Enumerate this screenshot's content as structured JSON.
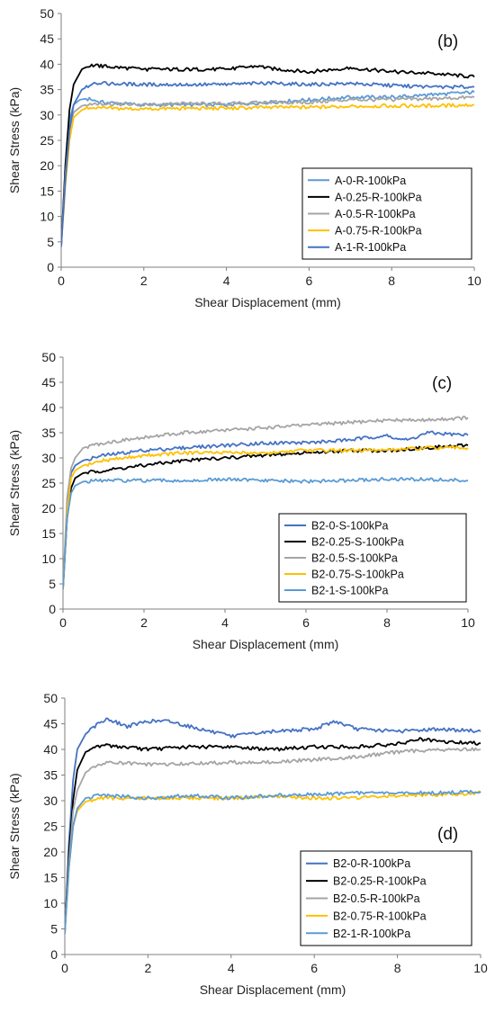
{
  "chart_data": [
    {
      "type": "line",
      "panel_label": "(b)",
      "xlabel": "Shear Displacement (mm)",
      "ylabel": "Shear Stress (kPa)",
      "xlim": [
        0,
        10
      ],
      "ylim": [
        0,
        50
      ],
      "xticks": [
        0,
        2,
        4,
        6,
        8,
        10
      ],
      "yticks": [
        0,
        5,
        10,
        15,
        20,
        25,
        30,
        35,
        40,
        45,
        50
      ],
      "grid": false,
      "legend_position": "lower-right",
      "series": [
        {
          "name": "A-0-R-100kPa",
          "color": "#5b9bd5",
          "x": [
            0,
            0.1,
            0.2,
            0.3,
            0.45,
            0.6,
            1,
            2,
            3,
            4,
            5,
            6,
            7,
            8,
            9,
            10
          ],
          "y": [
            4,
            20,
            29,
            32,
            33,
            33.2,
            32.5,
            32,
            32,
            32,
            32.5,
            33,
            33.5,
            33.5,
            34,
            34.5
          ]
        },
        {
          "name": "A-0.25-R-100kPa",
          "color": "#000000",
          "x": [
            0,
            0.1,
            0.2,
            0.3,
            0.5,
            0.7,
            1,
            2,
            3,
            4,
            4.8,
            5,
            6,
            7,
            8,
            9,
            10
          ],
          "y": [
            4,
            20,
            31,
            36,
            39,
            39.8,
            39.6,
            39,
            39,
            39,
            39.7,
            39.2,
            38.5,
            39.3,
            38.5,
            38.2,
            37.5
          ]
        },
        {
          "name": "A-0.5-R-100kPa",
          "color": "#a5a5a5",
          "x": [
            0,
            0.1,
            0.2,
            0.3,
            0.5,
            0.7,
            1,
            2,
            3,
            4,
            5,
            6,
            7,
            8,
            9,
            10
          ],
          "y": [
            4,
            18,
            27,
            30.5,
            31.8,
            32.2,
            32.2,
            32,
            32.2,
            32.2,
            32.5,
            32.5,
            33,
            33,
            33.2,
            33.5
          ]
        },
        {
          "name": "A-0.75-R-100kPa",
          "color": "#ffc000",
          "x": [
            0,
            0.1,
            0.2,
            0.3,
            0.5,
            0.7,
            1,
            2,
            3,
            4,
            5,
            6,
            7,
            8,
            9,
            10
          ],
          "y": [
            4,
            16,
            25,
            29.5,
            31,
            31.5,
            31.3,
            31.2,
            31.3,
            31.3,
            31.5,
            31.5,
            31.7,
            31.8,
            31.8,
            32
          ]
        },
        {
          "name": "A-1-R-100kPa",
          "color": "#4472c4",
          "x": [
            0,
            0.1,
            0.2,
            0.3,
            0.5,
            0.8,
            1,
            2,
            3,
            4,
            5,
            6,
            7,
            8,
            9,
            10
          ],
          "y": [
            4,
            17,
            27,
            32,
            35,
            36.3,
            36.2,
            36,
            36,
            36,
            36.3,
            36,
            36.2,
            35.8,
            35.5,
            35.5
          ]
        }
      ]
    },
    {
      "type": "line",
      "panel_label": "(c)",
      "xlabel": "Shear Displacement (mm)",
      "ylabel": "Shear Stress (kPa)",
      "xlim": [
        0,
        10
      ],
      "ylim": [
        0,
        50
      ],
      "xticks": [
        0,
        2,
        4,
        6,
        8,
        10
      ],
      "yticks": [
        0,
        5,
        10,
        15,
        20,
        25,
        30,
        35,
        40,
        45,
        50
      ],
      "grid": false,
      "legend_position": "lower-right",
      "series": [
        {
          "name": "B2-0-S-100kPa",
          "color": "#4472c4",
          "x": [
            0,
            0.1,
            0.2,
            0.3,
            0.5,
            1,
            2,
            3,
            4,
            5,
            6,
            7,
            8,
            8.5,
            9,
            10
          ],
          "y": [
            4,
            20,
            27,
            28.5,
            29.5,
            30.5,
            31.5,
            32,
            32.5,
            33,
            33,
            33.5,
            34.5,
            33.5,
            35,
            34.5
          ]
        },
        {
          "name": "B2-0.25-S-100kPa",
          "color": "#000000",
          "x": [
            0,
            0.1,
            0.2,
            0.3,
            0.5,
            1,
            2,
            3,
            4,
            5,
            6,
            7,
            8,
            9,
            10
          ],
          "y": [
            4,
            18,
            24,
            26,
            27,
            27.5,
            28.5,
            29.5,
            30,
            30.5,
            31,
            31.5,
            31.5,
            32,
            32.5
          ]
        },
        {
          "name": "B2-0.5-S-100kPa",
          "color": "#a5a5a5",
          "x": [
            0,
            0.1,
            0.2,
            0.3,
            0.5,
            1,
            2,
            3,
            4,
            5,
            6,
            7,
            8,
            9,
            10
          ],
          "y": [
            4,
            22,
            28,
            30,
            32,
            33,
            34,
            35,
            35.5,
            36,
            36.5,
            37,
            37.5,
            37.5,
            38
          ]
        },
        {
          "name": "B2-0.75-S-100kPa",
          "color": "#ffc000",
          "x": [
            0,
            0.1,
            0.2,
            0.3,
            0.5,
            1,
            2,
            3,
            4,
            5,
            6,
            7,
            8,
            9,
            10
          ],
          "y": [
            4,
            19,
            26,
            27.5,
            28.5,
            29.5,
            30.5,
            31,
            31,
            31,
            31.5,
            31.5,
            31.5,
            32,
            32
          ]
        },
        {
          "name": "B2-1-S-100kPa",
          "color": "#5b9bd5",
          "x": [
            0,
            0.1,
            0.2,
            0.3,
            0.5,
            1,
            2,
            3,
            4,
            5,
            6,
            7,
            8,
            9,
            10
          ],
          "y": [
            4,
            18,
            23,
            24.5,
            25.3,
            25.5,
            25.5,
            25.5,
            25.7,
            25.5,
            25.3,
            25.5,
            25.8,
            25.7,
            25.5
          ]
        }
      ]
    },
    {
      "type": "line",
      "panel_label": "(d)",
      "xlabel": "Shear Displacement (mm)",
      "ylabel": "Shear Stress (kPa)",
      "xlim": [
        0,
        10
      ],
      "ylim": [
        0,
        50
      ],
      "xticks": [
        0,
        2,
        4,
        6,
        8,
        10
      ],
      "yticks": [
        0,
        5,
        10,
        15,
        20,
        25,
        30,
        35,
        40,
        45,
        50
      ],
      "grid": false,
      "legend_position": "lower-left",
      "series": [
        {
          "name": "B2-0-R-100kPa",
          "color": "#4472c4",
          "x": [
            0,
            0.1,
            0.2,
            0.3,
            0.5,
            0.8,
            1,
            1.5,
            2,
            2.5,
            3,
            4,
            5,
            6,
            6.5,
            7,
            8,
            9,
            10
          ],
          "y": [
            4,
            22,
            34,
            40,
            43,
            45,
            46,
            44.5,
            45.5,
            45.5,
            44.5,
            42.5,
            43.5,
            44,
            45.5,
            44,
            43.5,
            44,
            43.5
          ]
        },
        {
          "name": "B2-0.25-R-100kPa",
          "color": "#000000",
          "x": [
            0,
            0.1,
            0.2,
            0.3,
            0.5,
            0.8,
            1,
            2,
            3,
            4,
            5,
            6,
            7,
            8,
            8.5,
            9,
            10
          ],
          "y": [
            4,
            20,
            30,
            36,
            39.5,
            40.5,
            40.8,
            40,
            40.5,
            40.5,
            40,
            40.5,
            40.5,
            41,
            42,
            41.5,
            41.2
          ]
        },
        {
          "name": "B2-0.5-R-100kPa",
          "color": "#a5a5a5",
          "x": [
            0,
            0.1,
            0.2,
            0.3,
            0.5,
            0.8,
            1,
            2,
            3,
            4,
            5,
            6,
            7,
            8,
            9,
            10
          ],
          "y": [
            4,
            18,
            28,
            32,
            35.5,
            37,
            37.5,
            37,
            37.2,
            37.5,
            37.5,
            38,
            38.5,
            39.5,
            40,
            40
          ]
        },
        {
          "name": "B2-0.75-R-100kPa",
          "color": "#ffc000",
          "x": [
            0,
            0.1,
            0.2,
            0.3,
            0.5,
            0.8,
            1,
            2,
            3,
            4,
            5,
            6,
            7,
            8,
            9,
            10
          ],
          "y": [
            4,
            17,
            25,
            28,
            29.8,
            30.5,
            30.5,
            30.5,
            30.5,
            30.5,
            30.8,
            30.5,
            30.5,
            31,
            31.2,
            31.5
          ]
        },
        {
          "name": "B2-1-R-100kPa",
          "color": "#5b9bd5",
          "x": [
            0,
            0.1,
            0.2,
            0.3,
            0.5,
            0.8,
            1,
            2,
            3,
            4,
            5,
            6,
            7,
            8,
            9,
            10
          ],
          "y": [
            4,
            17,
            25,
            28.5,
            30.5,
            31,
            31,
            30.5,
            31,
            30.5,
            31,
            31.2,
            31.5,
            31.5,
            31.5,
            31.8
          ]
        }
      ]
    }
  ]
}
